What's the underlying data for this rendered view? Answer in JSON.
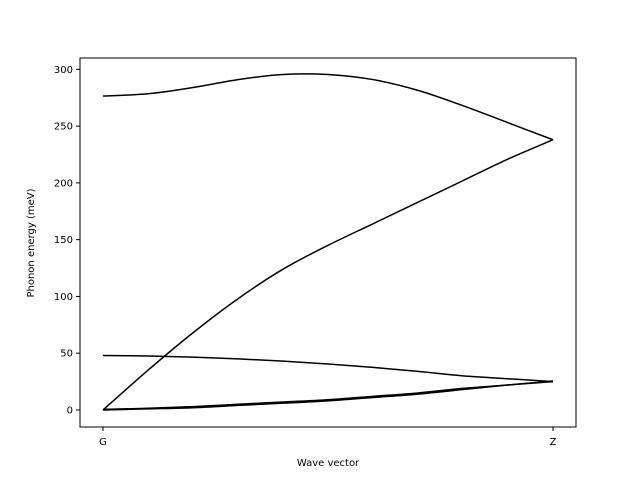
{
  "chart_data": {
    "type": "line",
    "title": "",
    "xlabel": "Wave vector",
    "ylabel": "Phonon energy (meV)",
    "x_ticks": [
      "G",
      "Z"
    ],
    "x": [
      0,
      0.1,
      0.2,
      0.3,
      0.4,
      0.5,
      0.6,
      0.7,
      0.8,
      0.9,
      1.0
    ],
    "ylim": [
      -15,
      310
    ],
    "y_ticks": [
      0,
      50,
      100,
      150,
      200,
      250,
      300
    ],
    "grid": false,
    "line_color": "#000000",
    "series": [
      {
        "values": [
          0,
          1,
          2,
          4,
          6,
          8,
          11,
          14,
          18,
          22,
          25
        ]
      },
      {
        "values": [
          0.5,
          1.5,
          3,
          5,
          7,
          9,
          12,
          15,
          19,
          22,
          25.5
        ]
      },
      {
        "values": [
          48,
          47.5,
          46.5,
          45,
          43,
          40.5,
          37.5,
          34,
          30,
          27.5,
          25
        ]
      },
      {
        "values": [
          0,
          35,
          68,
          98,
          124,
          145,
          164,
          183,
          202,
          221,
          238
        ]
      },
      {
        "values": [
          276.5,
          278.5,
          284,
          291,
          295.5,
          295.5,
          291,
          281.5,
          268,
          253,
          238
        ]
      }
    ]
  }
}
